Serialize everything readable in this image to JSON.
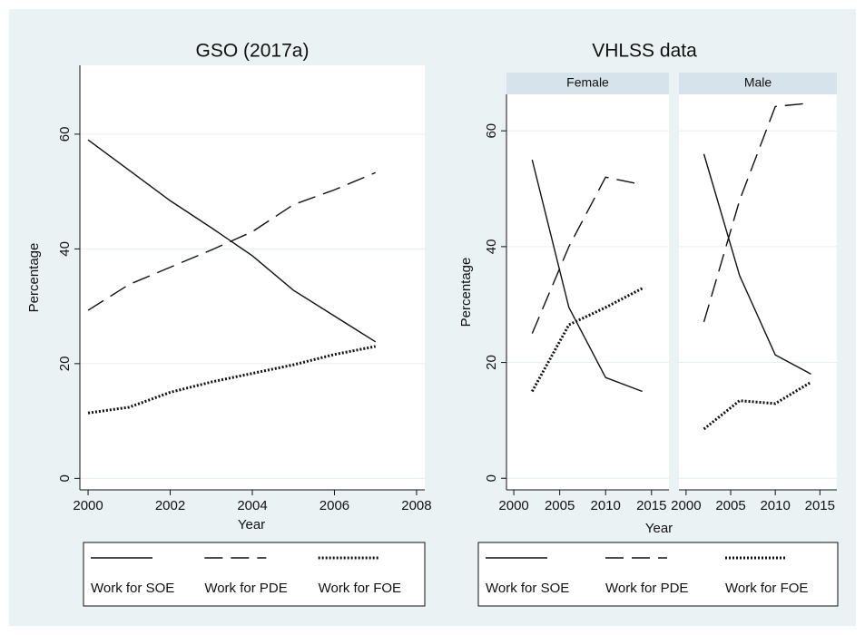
{
  "chart_data": [
    {
      "type": "line",
      "title": "GSO (2017a)",
      "xlabel": "Year",
      "ylabel": "Percentage",
      "x": [
        2000,
        2001,
        2002,
        2003,
        2004,
        2005,
        2006,
        2007
      ],
      "series": [
        {
          "name": "Work for SOE",
          "color": "#111111",
          "dash": "solid",
          "values": [
            59,
            53.7,
            48.4,
            43.7,
            38.8,
            32.8,
            28.3,
            23.8
          ]
        },
        {
          "name": "Work for PDE",
          "color": "#111111",
          "dash": "dash",
          "values": [
            29.3,
            33.8,
            36.8,
            39.8,
            43,
            47.7,
            50.3,
            53.3
          ]
        },
        {
          "name": "Work for FOE",
          "color": "#111111",
          "dash": "dot",
          "values": [
            11.4,
            12.4,
            15,
            16.8,
            18.3,
            19.8,
            21.6,
            23
          ]
        }
      ],
      "xlim": [
        1999.8,
        2008.2
      ],
      "ylim": [
        -2,
        72
      ],
      "xticks": [
        2000,
        2002,
        2004,
        2006,
        2008
      ],
      "yticks": [
        0,
        20,
        40,
        60
      ],
      "grid": true
    },
    {
      "type": "line",
      "title": "VHLSS data",
      "xlabel": "Year",
      "ylabel": "Percentage",
      "series": [
        {
          "name": "Work for SOE",
          "color": "#111111",
          "dash": "solid"
        },
        {
          "name": "Work for PDE",
          "color": "#111111",
          "dash": "dash"
        },
        {
          "name": "Work for FOE",
          "color": "#111111",
          "dash": "dot"
        }
      ],
      "panels": [
        {
          "name": "Female",
          "x": [
            2002,
            2006,
            2010,
            2014
          ],
          "values": [
            [
              55,
              29.5,
              17.4,
              15
            ],
            [
              25,
              40,
              52,
              50.7
            ],
            [
              15,
              26.5,
              29.5,
              32.8
            ]
          ]
        },
        {
          "name": "Male",
          "x": [
            2002,
            2006,
            2010,
            2014
          ],
          "values": [
            [
              56,
              35,
              21.3,
              18
            ],
            [
              27,
              48,
              64.2,
              64.8
            ],
            [
              8.5,
              13.4,
              12.9,
              16.6
            ]
          ]
        }
      ],
      "xlim": [
        1999.2,
        2016.9
      ],
      "ylim": [
        -2,
        66.3
      ],
      "xticks": [
        2000,
        2005,
        2010,
        2015
      ],
      "yticks": [
        0,
        20,
        40,
        60
      ],
      "grid": true
    }
  ]
}
